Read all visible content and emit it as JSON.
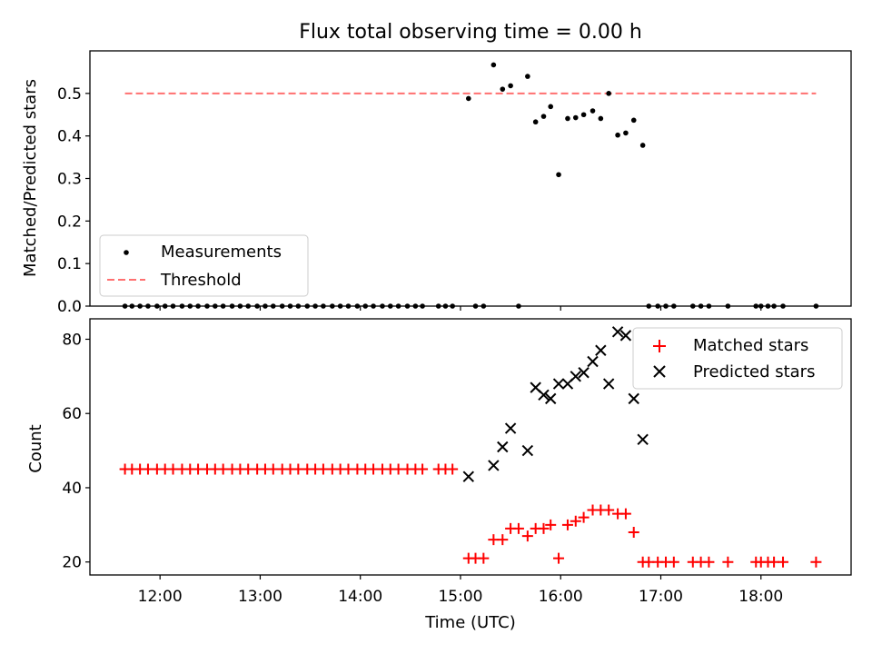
{
  "chart_data": [
    {
      "type": "scatter",
      "title": "Flux total observing time = 0.00 h",
      "xlabel": "",
      "ylabel": "Matched/Predicted stars",
      "xlim": [
        11.3,
        18.9
      ],
      "ylim": [
        0.0,
        0.6
      ],
      "yticks": [
        0.0,
        0.1,
        0.2,
        0.3,
        0.4,
        0.5
      ],
      "ytick_labels": [
        "0.0",
        "0.1",
        "0.2",
        "0.3",
        "0.4",
        "0.5"
      ],
      "grid": false,
      "legend_position": "lower-left",
      "series": [
        {
          "name": "Measurements",
          "marker": "dot",
          "color": "#000000",
          "x": [
            11.65,
            11.72,
            11.8,
            11.88,
            11.97,
            12.05,
            12.13,
            12.22,
            12.3,
            12.38,
            12.47,
            12.55,
            12.63,
            12.72,
            12.8,
            12.88,
            12.97,
            13.05,
            13.13,
            13.22,
            13.3,
            13.38,
            13.47,
            13.55,
            13.63,
            13.72,
            13.8,
            13.88,
            13.97,
            14.05,
            14.13,
            14.22,
            14.3,
            14.38,
            14.47,
            14.55,
            14.62,
            14.78,
            14.85,
            14.92,
            15.08,
            15.15,
            15.23,
            15.33,
            15.42,
            15.5,
            15.58,
            15.67,
            15.75,
            15.83,
            15.9,
            15.98,
            16.07,
            16.15,
            16.23,
            16.32,
            16.4,
            16.48,
            16.57,
            16.65,
            16.73,
            16.82,
            16.88,
            16.97,
            17.05,
            17.13,
            17.32,
            17.4,
            17.48,
            17.67,
            17.95,
            18.0,
            18.07,
            18.13,
            18.22,
            18.55
          ],
          "y": [
            0,
            0,
            0,
            0,
            0,
            0,
            0,
            0,
            0,
            0,
            0,
            0,
            0,
            0,
            0,
            0,
            0,
            0,
            0,
            0,
            0,
            0,
            0,
            0,
            0,
            0,
            0,
            0,
            0,
            0,
            0,
            0,
            0,
            0,
            0,
            0,
            0,
            0,
            0,
            0,
            0.488,
            0,
            0,
            0.567,
            0.51,
            0.518,
            0,
            0.54,
            0.433,
            0.446,
            0.469,
            0.309,
            0.441,
            0.443,
            0.45,
            0.459,
            0.441,
            0.5,
            0.402,
            0.407,
            0.437,
            0.378,
            0,
            0,
            0,
            0,
            0,
            0,
            0,
            0,
            0,
            0,
            0,
            0,
            0,
            0
          ]
        },
        {
          "name": "Threshold",
          "style": "dashed",
          "color": "#ff7070",
          "x": [
            11.65,
            18.55
          ],
          "y": [
            0.5,
            0.5
          ]
        }
      ]
    },
    {
      "type": "scatter",
      "title": "",
      "xlabel": "Time (UTC)",
      "ylabel": "Count",
      "xlim": [
        11.3,
        18.9
      ],
      "ylim": [
        16.5,
        85.5
      ],
      "xticks": [
        12,
        13,
        14,
        15,
        16,
        17,
        18
      ],
      "xtick_labels": [
        "12:00",
        "13:00",
        "14:00",
        "15:00",
        "16:00",
        "17:00",
        "18:00"
      ],
      "yticks": [
        20,
        40,
        60,
        80
      ],
      "ytick_labels": [
        "20",
        "40",
        "60",
        "80"
      ],
      "grid": false,
      "legend_position": "upper-right",
      "series": [
        {
          "name": "Matched stars",
          "marker": "plus",
          "color": "#ff0000",
          "x": [
            11.65,
            11.72,
            11.8,
            11.88,
            11.97,
            12.05,
            12.13,
            12.22,
            12.3,
            12.38,
            12.47,
            12.55,
            12.63,
            12.72,
            12.8,
            12.88,
            12.97,
            13.05,
            13.13,
            13.22,
            13.3,
            13.38,
            13.47,
            13.55,
            13.63,
            13.72,
            13.8,
            13.88,
            13.97,
            14.05,
            14.13,
            14.22,
            14.3,
            14.38,
            14.47,
            14.55,
            14.62,
            14.78,
            14.85,
            14.92,
            15.08,
            15.15,
            15.23,
            15.33,
            15.42,
            15.5,
            15.58,
            15.67,
            15.75,
            15.83,
            15.9,
            15.98,
            16.07,
            16.15,
            16.23,
            16.32,
            16.4,
            16.48,
            16.57,
            16.65,
            16.73,
            16.82,
            16.88,
            16.97,
            17.05,
            17.13,
            17.32,
            17.4,
            17.48,
            17.67,
            17.95,
            18.0,
            18.07,
            18.13,
            18.22,
            18.55
          ],
          "y": [
            45,
            45,
            45,
            45,
            45,
            45,
            45,
            45,
            45,
            45,
            45,
            45,
            45,
            45,
            45,
            45,
            45,
            45,
            45,
            45,
            45,
            45,
            45,
            45,
            45,
            45,
            45,
            45,
            45,
            45,
            45,
            45,
            45,
            45,
            45,
            45,
            45,
            45,
            45,
            45,
            21,
            21,
            21,
            26,
            26,
            29,
            29,
            27,
            29,
            29,
            30,
            21,
            30,
            31,
            32,
            34,
            34,
            34,
            33,
            33,
            28,
            20,
            20,
            20,
            20,
            20,
            20,
            20,
            20,
            20,
            20,
            20,
            20,
            20,
            20,
            20
          ]
        },
        {
          "name": "Predicted stars",
          "marker": "x",
          "color": "#000000",
          "x": [
            15.08,
            15.33,
            15.42,
            15.5,
            15.67,
            15.75,
            15.83,
            15.9,
            15.98,
            16.07,
            16.15,
            16.23,
            16.32,
            16.4,
            16.48,
            16.57,
            16.65,
            16.73,
            16.82
          ],
          "y": [
            43,
            46,
            51,
            56,
            50,
            67,
            65,
            64,
            68,
            68,
            70,
            71,
            74,
            77,
            68,
            82,
            81,
            64,
            53
          ]
        }
      ]
    }
  ]
}
